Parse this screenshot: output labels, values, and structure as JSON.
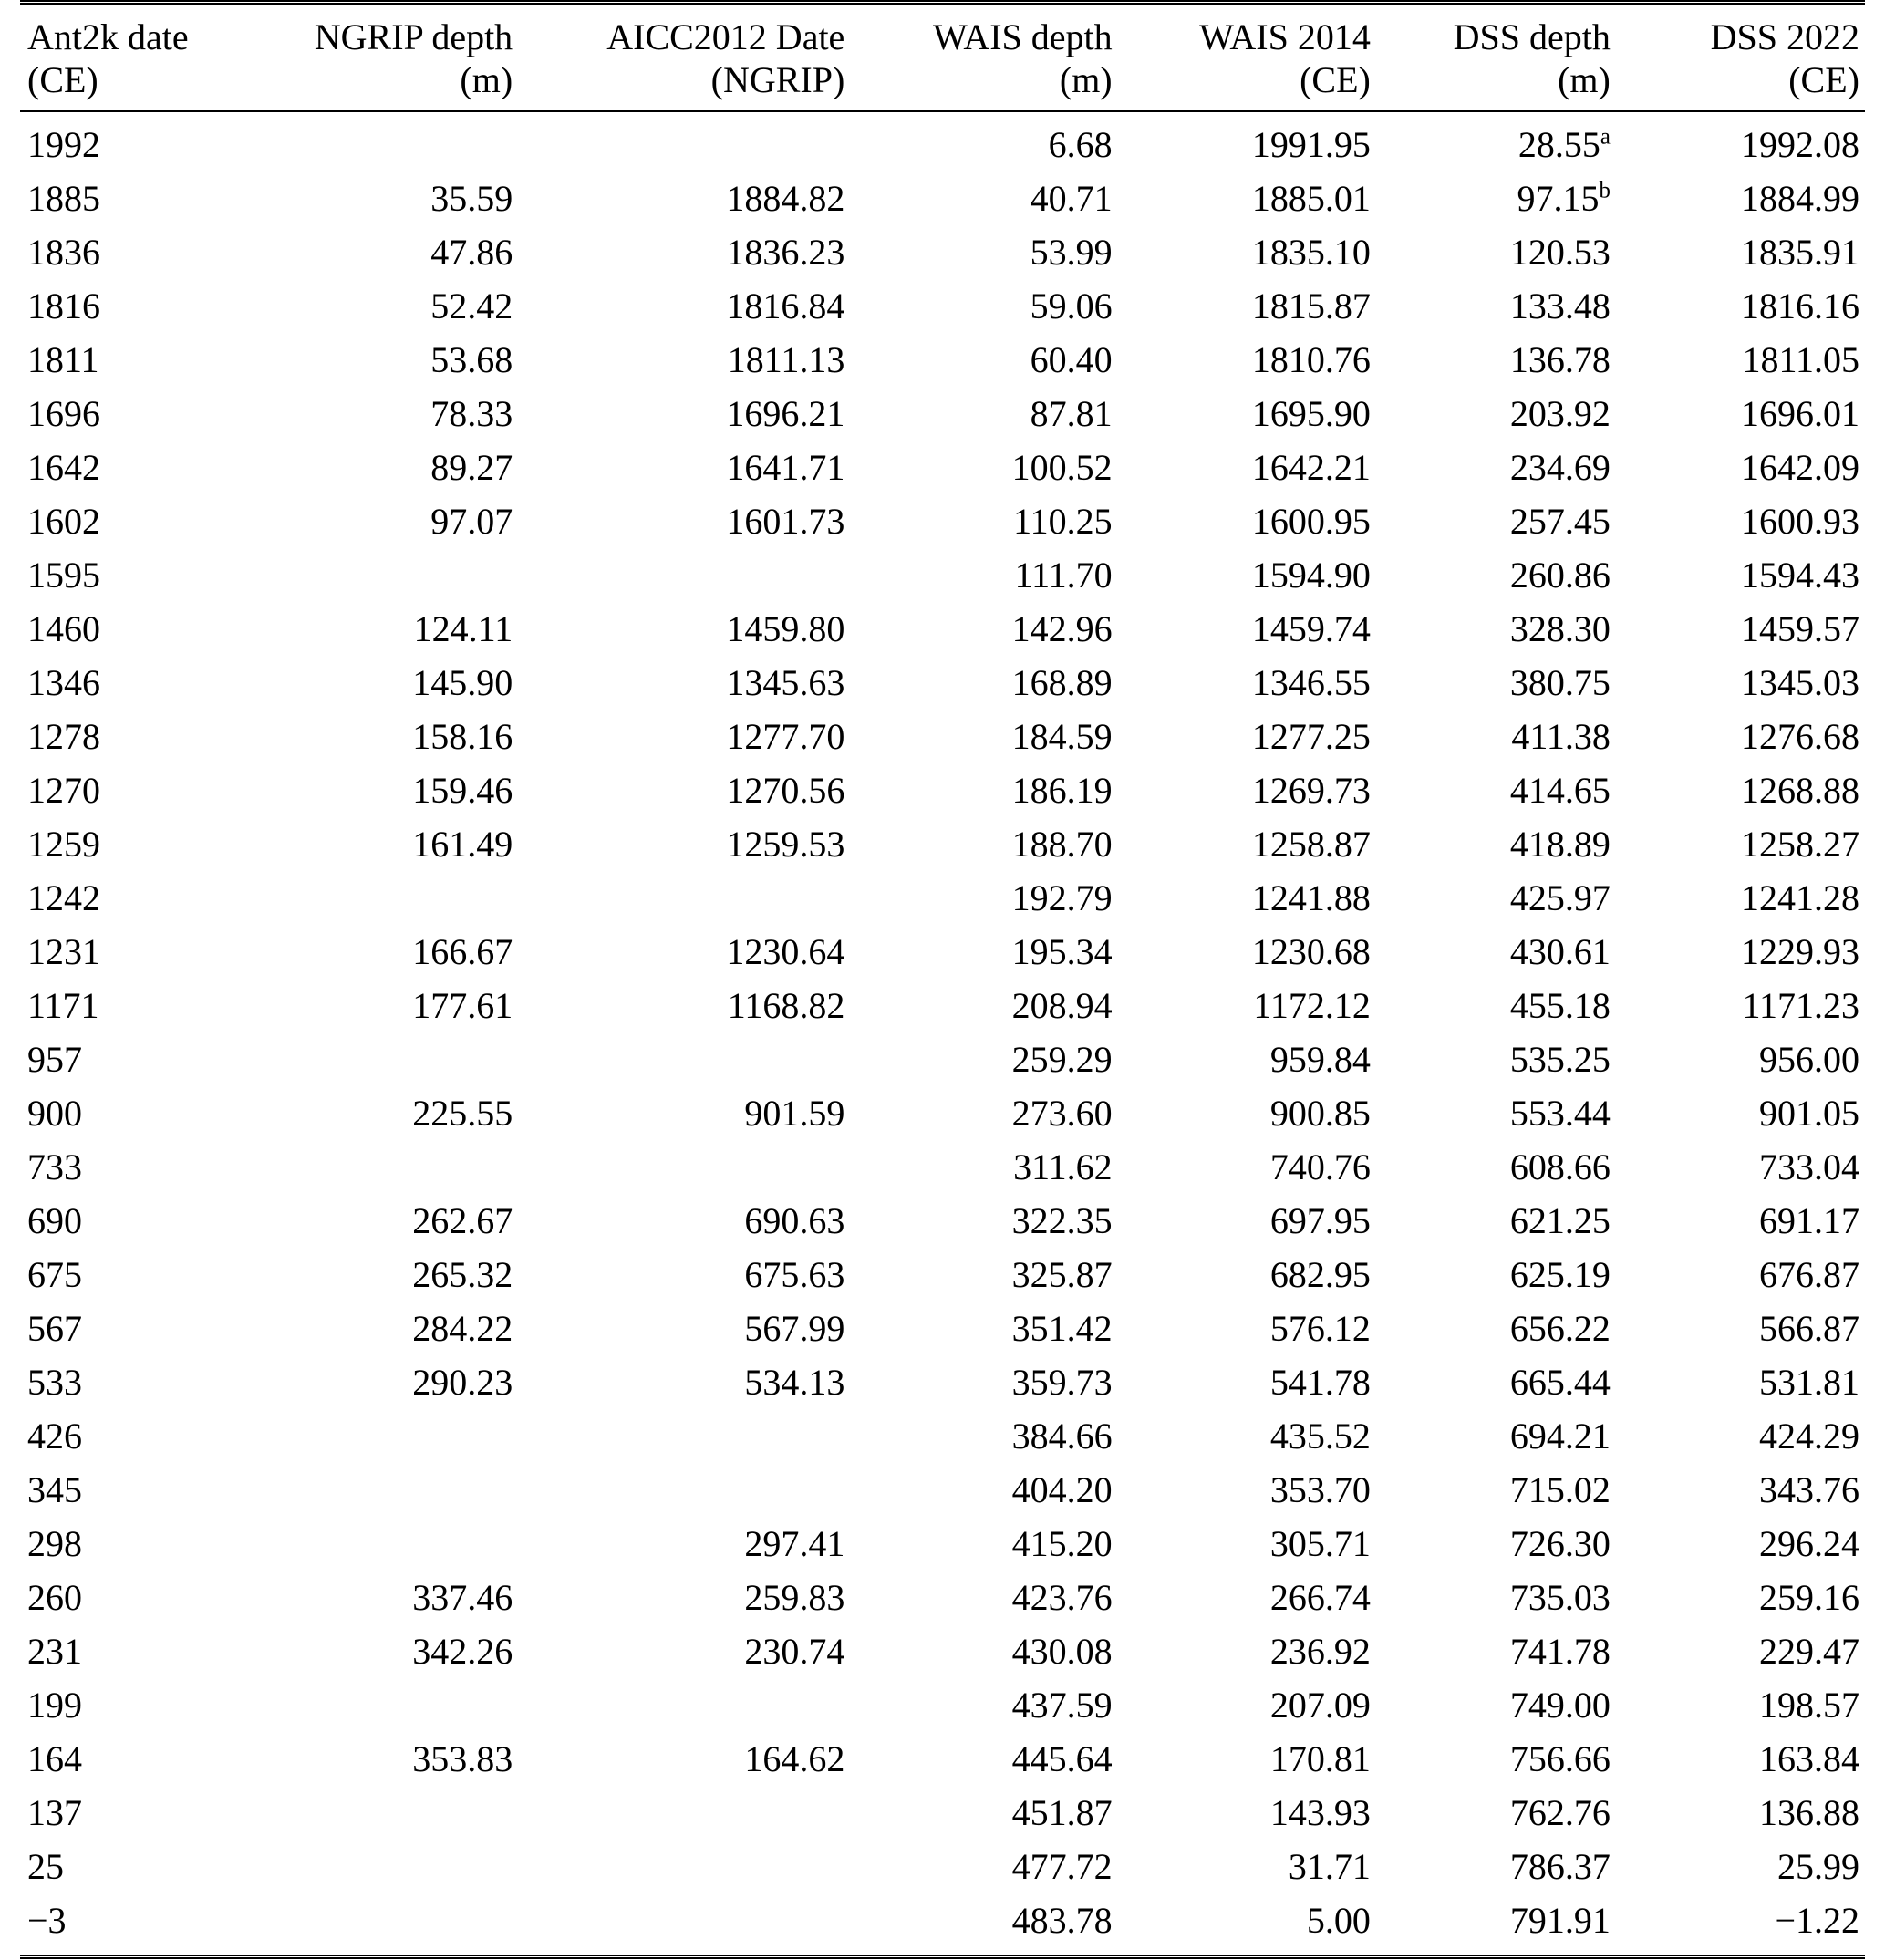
{
  "colors": {
    "background": "#ffffff",
    "text": "#000000",
    "rule": "#000000"
  },
  "table": {
    "columns": [
      {
        "line1": "Ant2k date",
        "line2": "(CE)",
        "align": "left"
      },
      {
        "line1": "NGRIP depth",
        "line2": "(m)",
        "align": "right"
      },
      {
        "line1": "AICC2012 Date",
        "line2": "(NGRIP)",
        "align": "right"
      },
      {
        "line1": "WAIS depth",
        "line2": "(m)",
        "align": "right"
      },
      {
        "line1": "WAIS 2014",
        "line2": "(CE)",
        "align": "right"
      },
      {
        "line1": "DSS depth",
        "line2": "(m)",
        "align": "right"
      },
      {
        "line1": "DSS 2022",
        "line2": "(CE)",
        "align": "right"
      }
    ],
    "rows": [
      [
        "1992",
        "",
        "",
        "6.68",
        "1991.95",
        "28.55^a",
        "1992.08"
      ],
      [
        "1885",
        "35.59",
        "1884.82",
        "40.71",
        "1885.01",
        "97.15^b",
        "1884.99"
      ],
      [
        "1836",
        "47.86",
        "1836.23",
        "53.99",
        "1835.10",
        "120.53",
        "1835.91"
      ],
      [
        "1816",
        "52.42",
        "1816.84",
        "59.06",
        "1815.87",
        "133.48",
        "1816.16"
      ],
      [
        "1811",
        "53.68",
        "1811.13",
        "60.40",
        "1810.76",
        "136.78",
        "1811.05"
      ],
      [
        "1696",
        "78.33",
        "1696.21",
        "87.81",
        "1695.90",
        "203.92",
        "1696.01"
      ],
      [
        "1642",
        "89.27",
        "1641.71",
        "100.52",
        "1642.21",
        "234.69",
        "1642.09"
      ],
      [
        "1602",
        "97.07",
        "1601.73",
        "110.25",
        "1600.95",
        "257.45",
        "1600.93"
      ],
      [
        "1595",
        "",
        "",
        "111.70",
        "1594.90",
        "260.86",
        "1594.43"
      ],
      [
        "1460",
        "124.11",
        "1459.80",
        "142.96",
        "1459.74",
        "328.30",
        "1459.57"
      ],
      [
        "1346",
        "145.90",
        "1345.63",
        "168.89",
        "1346.55",
        "380.75",
        "1345.03"
      ],
      [
        "1278",
        "158.16",
        "1277.70",
        "184.59",
        "1277.25",
        "411.38",
        "1276.68"
      ],
      [
        "1270",
        "159.46",
        "1270.56",
        "186.19",
        "1269.73",
        "414.65",
        "1268.88"
      ],
      [
        "1259",
        "161.49",
        "1259.53",
        "188.70",
        "1258.87",
        "418.89",
        "1258.27"
      ],
      [
        "1242",
        "",
        "",
        "192.79",
        "1241.88",
        "425.97",
        "1241.28"
      ],
      [
        "1231",
        "166.67",
        "1230.64",
        "195.34",
        "1230.68",
        "430.61",
        "1229.93"
      ],
      [
        "1171",
        "177.61",
        "1168.82",
        "208.94",
        "1172.12",
        "455.18",
        "1171.23"
      ],
      [
        "957",
        "",
        "",
        "259.29",
        "959.84",
        "535.25",
        "956.00"
      ],
      [
        "900",
        "225.55",
        "901.59",
        "273.60",
        "900.85",
        "553.44",
        "901.05"
      ],
      [
        "733",
        "",
        "",
        "311.62",
        "740.76",
        "608.66",
        "733.04"
      ],
      [
        "690",
        "262.67",
        "690.63",
        "322.35",
        "697.95",
        "621.25",
        "691.17"
      ],
      [
        "675",
        "265.32",
        "675.63",
        "325.87",
        "682.95",
        "625.19",
        "676.87"
      ],
      [
        "567",
        "284.22",
        "567.99",
        "351.42",
        "576.12",
        "656.22",
        "566.87"
      ],
      [
        "533",
        "290.23",
        "534.13",
        "359.73",
        "541.78",
        "665.44",
        "531.81"
      ],
      [
        "426",
        "",
        "",
        "384.66",
        "435.52",
        "694.21",
        "424.29"
      ],
      [
        "345",
        "",
        "",
        "404.20",
        "353.70",
        "715.02",
        "343.76"
      ],
      [
        "298",
        "",
        "297.41",
        "415.20",
        "305.71",
        "726.30",
        "296.24"
      ],
      [
        "260",
        "337.46",
        "259.83",
        "423.76",
        "266.74",
        "735.03",
        "259.16"
      ],
      [
        "231",
        "342.26",
        "230.74",
        "430.08",
        "236.92",
        "741.78",
        "229.47"
      ],
      [
        "199",
        "",
        "",
        "437.59",
        "207.09",
        "749.00",
        "198.57"
      ],
      [
        "164",
        "353.83",
        "164.62",
        "445.64",
        "170.81",
        "756.66",
        "163.84"
      ],
      [
        "137",
        "",
        "",
        "451.87",
        "143.93",
        "762.76",
        "136.88"
      ],
      [
        "25",
        "",
        "",
        "477.72",
        "31.71",
        "786.37",
        "25.99"
      ],
      [
        "−3",
        "",
        "",
        "483.78",
        "5.00",
        "791.91",
        "−1.22"
      ]
    ]
  }
}
